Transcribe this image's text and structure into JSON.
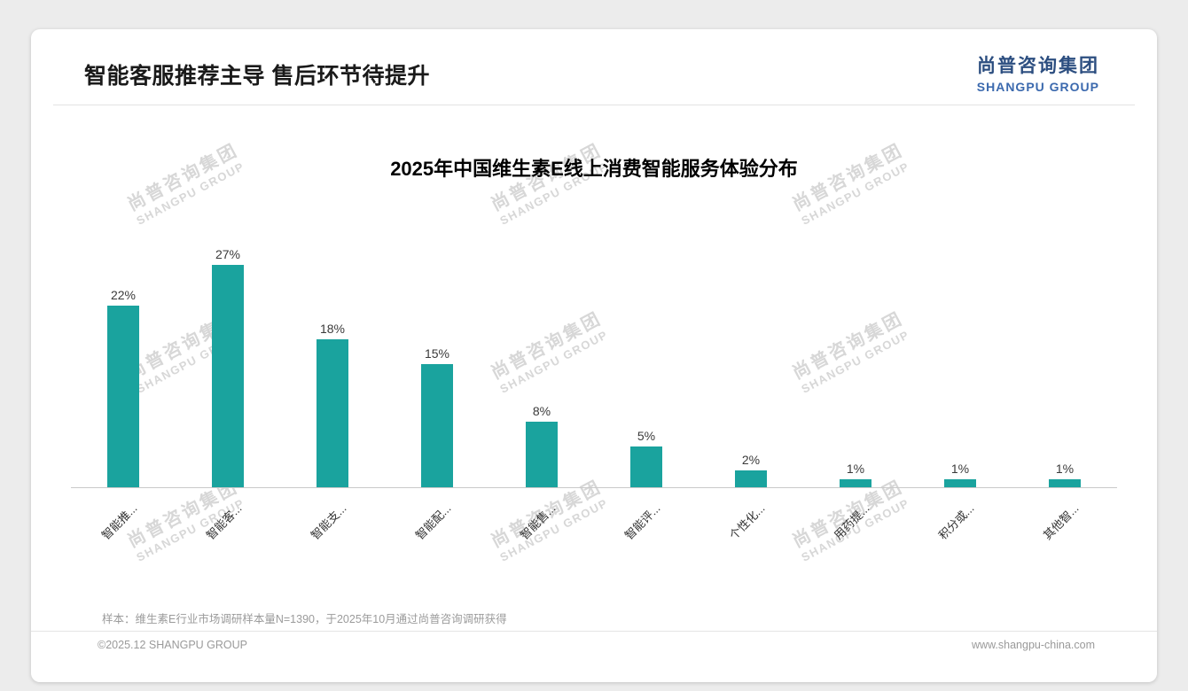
{
  "page": {
    "header": {
      "title": "智能客服推荐主导 售后环节待提升",
      "logo": {
        "cn": "尚普咨询集团",
        "en": "SHANGPU GROUP"
      }
    },
    "watermark": {
      "cn": "尚普咨询集团",
      "en": "SHANGPU GROUP"
    },
    "footer": {
      "note": "样本：维生素E行业市场调研样本量N=1390，于2025年10月通过尚普咨询调研获得",
      "copyright": "©2025.12 SHANGPU GROUP",
      "website": "www.shangpu-china.com"
    },
    "colors": {
      "logo_cn": "#2c4e80",
      "logo_en": "#3b69ae",
      "background": "#ececec"
    }
  },
  "chart_data": {
    "type": "bar",
    "title": "2025年中国维生素E线上消费智能服务体验分布",
    "categories": [
      "智能推...",
      "智能客...",
      "智能支...",
      "智能配...",
      "智能售...",
      "智能评...",
      "个性化...",
      "用药提...",
      "积分或...",
      "其他智..."
    ],
    "values": [
      22,
      27,
      18,
      15,
      8,
      5,
      2,
      1,
      1,
      1
    ],
    "value_labels": [
      "22%",
      "27%",
      "18%",
      "15%",
      "8%",
      "5%",
      "2%",
      "1%",
      "1%",
      "1%"
    ],
    "bar_color": "#1aa39e",
    "xlabel": "",
    "ylabel": "",
    "ylim": [
      0,
      30
    ],
    "grid": false,
    "legend": false
  }
}
